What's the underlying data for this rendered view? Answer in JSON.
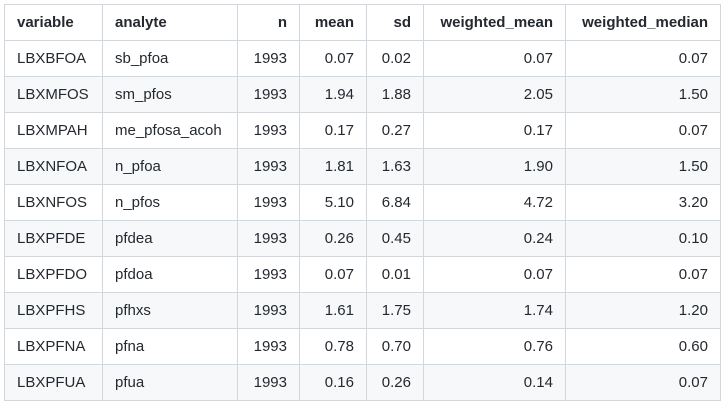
{
  "table": {
    "headers": [
      "variable",
      "analyte",
      "n",
      "mean",
      "sd",
      "weighted_mean",
      "weighted_median"
    ],
    "rows": [
      [
        "LBXBFOA",
        "sb_pfoa",
        "1993",
        "0.07",
        "0.02",
        "0.07",
        "0.07"
      ],
      [
        "LBXMFOS",
        "sm_pfos",
        "1993",
        "1.94",
        "1.88",
        "2.05",
        "1.50"
      ],
      [
        "LBXMPAH",
        "me_pfosa_acoh",
        "1993",
        "0.17",
        "0.27",
        "0.17",
        "0.07"
      ],
      [
        "LBXNFOA",
        "n_pfoa",
        "1993",
        "1.81",
        "1.63",
        "1.90",
        "1.50"
      ],
      [
        "LBXNFOS",
        "n_pfos",
        "1993",
        "5.10",
        "6.84",
        "4.72",
        "3.20"
      ],
      [
        "LBXPFDE",
        "pfdea",
        "1993",
        "0.26",
        "0.45",
        "0.24",
        "0.10"
      ],
      [
        "LBXPFDO",
        "pfdoa",
        "1993",
        "0.07",
        "0.01",
        "0.07",
        "0.07"
      ],
      [
        "LBXPFHS",
        "pfhxs",
        "1993",
        "1.61",
        "1.75",
        "1.74",
        "1.20"
      ],
      [
        "LBXPFNA",
        "pfna",
        "1993",
        "0.78",
        "0.70",
        "0.76",
        "0.60"
      ],
      [
        "LBXPFUA",
        "pfua",
        "1993",
        "0.16",
        "0.26",
        "0.14",
        "0.07"
      ]
    ]
  }
}
